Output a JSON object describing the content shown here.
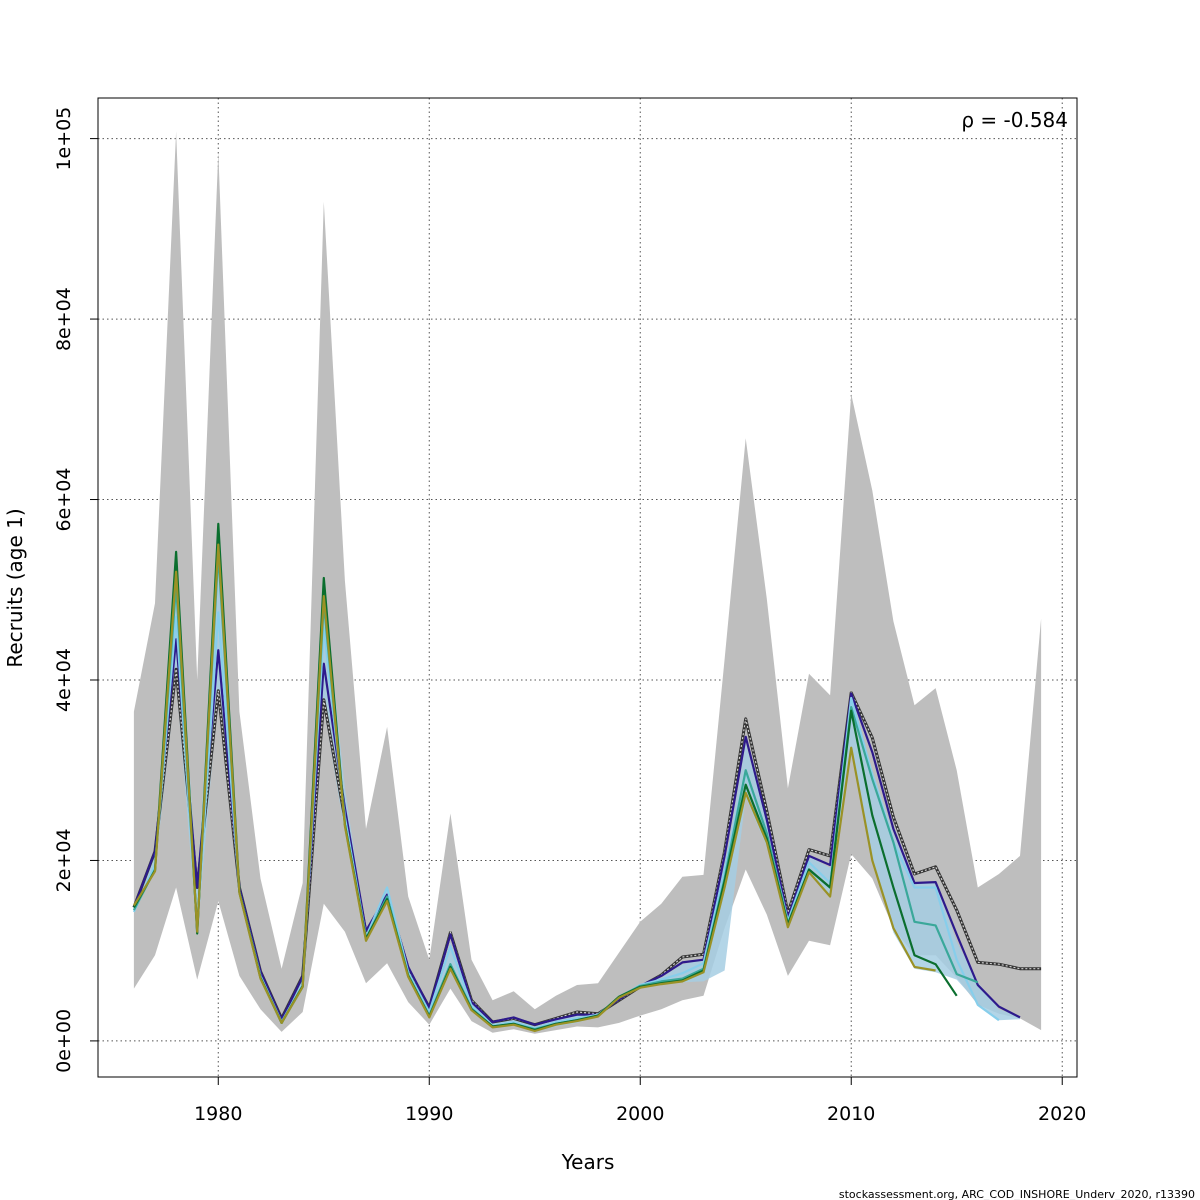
{
  "chart_data": {
    "type": "line",
    "xlabel": "Years",
    "ylabel": "Recruits (age 1)",
    "xlim": [
      1974.3,
      2020.7
    ],
    "ylim": [
      -4000,
      104500
    ],
    "x_ticks": [
      1980,
      1990,
      2000,
      2010,
      2020
    ],
    "x_tick_labels": [
      "1980",
      "1990",
      "2000",
      "2010",
      "2020"
    ],
    "y_ticks": [
      0,
      20000,
      40000,
      60000,
      80000,
      100000
    ],
    "y_tick_labels": [
      "0e+00",
      "2e+04",
      "4e+04",
      "6e+04",
      "8e+04",
      "1e+05"
    ],
    "grid": true,
    "annotation": "ρ = -0.584",
    "credit": "stockassessment.org, ARC_COD_INSHORE_Underv_2020, r13390",
    "band_outer": {
      "color": "#bebebe",
      "x": [
        1976,
        1977,
        1978,
        1979,
        1980,
        1981,
        1982,
        1983,
        1984,
        1985,
        1986,
        1987,
        1988,
        1989,
        1990,
        1991,
        1992,
        1993,
        1994,
        1995,
        1996,
        1997,
        1998,
        1999,
        2000,
        2001,
        2002,
        2003,
        2004,
        2005,
        2006,
        2007,
        2008,
        2009,
        2010,
        2011,
        2012,
        2013,
        2014,
        2015,
        2016,
        2017,
        2018,
        2019
      ],
      "upper": [
        36500,
        48500,
        100800,
        40000,
        98500,
        36500,
        18000,
        8000,
        17500,
        93000,
        51000,
        23500,
        34800,
        16000,
        9000,
        25200,
        9000,
        4500,
        5500,
        3500,
        5000,
        6200,
        6400,
        9800,
        13200,
        15200,
        18200,
        18400,
        42300,
        66800,
        49000,
        28000,
        40700,
        38300,
        71700,
        61000,
        46500,
        37200,
        39100,
        30000,
        17000,
        18500,
        20500,
        46800
      ],
      "lower": [
        5800,
        9500,
        17000,
        6800,
        15500,
        7200,
        3500,
        1000,
        3200,
        15200,
        12100,
        6400,
        8600,
        4300,
        1800,
        5800,
        2200,
        900,
        1300,
        800,
        1200,
        1600,
        1500,
        2000,
        2800,
        3500,
        4500,
        5000,
        12500,
        19000,
        14000,
        7200,
        11100,
        10600,
        20700,
        18000,
        12500,
        9500,
        9500,
        7000,
        4000,
        3000,
        2500,
        1200
      ]
    },
    "band_inner": {
      "color": "#a6cee3",
      "x": [
        1976,
        1977,
        1978,
        1979,
        1980,
        1981,
        1982,
        1983,
        1984,
        1985,
        1986,
        1987,
        1988,
        1989,
        1990,
        1991,
        1992,
        1993,
        1994,
        1995,
        1996,
        1997,
        1998,
        1999,
        2000,
        2001,
        2002,
        2003,
        2004,
        2005,
        2006,
        2007,
        2008,
        2009,
        2010,
        2011,
        2012,
        2013,
        2014,
        2015,
        2016,
        2017,
        2018
      ],
      "upper": [
        15000,
        21000,
        53000,
        17000,
        56500,
        16800,
        7800,
        2300,
        7300,
        50200,
        28000,
        12200,
        16700,
        8000,
        3600,
        11000,
        4100,
        1950,
        2500,
        1600,
        2300,
        2900,
        2900,
        4700,
        6300,
        7000,
        8500,
        9000,
        19000,
        33000,
        24300,
        13500,
        20400,
        19200,
        38000,
        30000,
        23000,
        17500,
        17500,
        11000,
        6500,
        3500,
        2700
      ],
      "lower": [
        14300,
        18800,
        40000,
        11800,
        38500,
        15900,
        6800,
        1800,
        5800,
        37000,
        23000,
        11000,
        15300,
        7000,
        2500,
        8000,
        3500,
        1400,
        1800,
        1000,
        1600,
        2000,
        2700,
        4400,
        6000,
        6300,
        6500,
        6600,
        7800,
        27000,
        21500,
        12800,
        18700,
        16000,
        32000,
        20000,
        12000,
        8000,
        7600,
        6800,
        4200,
        2300,
        2400
      ]
    },
    "series": [
      {
        "color": "#333333",
        "style": "dotted",
        "x": [
          1976,
          1977,
          1978,
          1979,
          1980,
          1981,
          1982,
          1983,
          1984,
          1985,
          1986,
          1987,
          1988,
          1989,
          1990,
          1991,
          1992,
          1993,
          1994,
          1995,
          1996,
          1997,
          1998,
          1999,
          2000,
          2001,
          2002,
          2003,
          2004,
          2005,
          2006,
          2007,
          2008,
          2009,
          2010,
          2011,
          2012,
          2013,
          2014,
          2015,
          2016,
          2017,
          2018,
          2019
        ],
        "values": [
          14800,
          21000,
          41200,
          17000,
          38800,
          17000,
          7700,
          2500,
          7200,
          37800,
          24600,
          12000,
          16000,
          8000,
          3700,
          12000,
          4500,
          2100,
          2500,
          1800,
          2500,
          3200,
          3000,
          4500,
          6000,
          7300,
          9300,
          9600,
          21000,
          35700,
          25500,
          14200,
          21200,
          20500,
          38600,
          33600,
          24800,
          18500,
          19300,
          14500,
          8700,
          8500,
          8000,
          8000
        ]
      },
      {
        "color": "#2d1a8c",
        "x": [
          1976,
          1977,
          1978,
          1979,
          1980,
          1981,
          1982,
          1983,
          1984,
          1985,
          1986,
          1987,
          1988,
          1989,
          1990,
          1991,
          1992,
          1993,
          1994,
          1995,
          1996,
          1997,
          1998,
          1999,
          2000,
          2001,
          2002,
          2003,
          2004,
          2005,
          2006,
          2007,
          2008,
          2009,
          2010,
          2011,
          2012,
          2013,
          2014,
          2015,
          2016,
          2017,
          2018
        ],
        "values": [
          14800,
          21000,
          44500,
          17000,
          43300,
          17000,
          7700,
          2400,
          7100,
          41800,
          25800,
          12200,
          16200,
          8200,
          3700,
          11800,
          4300,
          2100,
          2600,
          1800,
          2400,
          2900,
          2900,
          4600,
          6100,
          7200,
          8700,
          9000,
          20500,
          33700,
          24500,
          13700,
          20500,
          19500,
          38500,
          32000,
          23500,
          17500,
          17600,
          11800,
          6200,
          3800,
          2600
        ]
      },
      {
        "color": "#87ceeb",
        "x": [
          1976,
          1977,
          1978,
          1979,
          1980,
          1981,
          1982,
          1983,
          1984,
          1985,
          1986,
          1987,
          1988,
          1989,
          1990,
          1991,
          1992,
          1993,
          1994,
          1995,
          1996,
          1997,
          1998,
          1999,
          2000,
          2001,
          2002,
          2003,
          2004,
          2005,
          2006,
          2007,
          2008,
          2009,
          2010,
          2011,
          2012,
          2013,
          2014,
          2015,
          2016,
          2017
        ],
        "values": [
          14300,
          19500,
          47000,
          12500,
          47500,
          16500,
          7200,
          2100,
          6300,
          45800,
          24800,
          11500,
          17000,
          7600,
          3200,
          10500,
          3900,
          1700,
          2100,
          1400,
          2100,
          2500,
          2900,
          4800,
          6200,
          6800,
          7500,
          8600,
          19000,
          29800,
          23000,
          13300,
          19800,
          17500,
          38000,
          29500,
          22000,
          17000,
          17000,
          9000,
          4000,
          2300
        ]
      },
      {
        "color": "#3aa89a",
        "x": [
          1976,
          1977,
          1978,
          1979,
          1980,
          1981,
          1982,
          1983,
          1984,
          1985,
          1986,
          1987,
          1988,
          1989,
          1990,
          1991,
          1992,
          1993,
          1994,
          1995,
          1996,
          1997,
          1998,
          1999,
          2000,
          2001,
          2002,
          2003,
          2004,
          2005,
          2006,
          2007,
          2008,
          2009,
          2010,
          2011,
          2012,
          2013,
          2014,
          2015,
          2016
        ],
        "values": [
          14500,
          19000,
          50500,
          12200,
          54000,
          16500,
          7000,
          2000,
          6000,
          48500,
          24000,
          11300,
          16000,
          7300,
          2800,
          8500,
          3600,
          1600,
          1900,
          1300,
          1900,
          2300,
          2800,
          4900,
          6100,
          6600,
          6900,
          8000,
          18000,
          30000,
          23000,
          13000,
          19000,
          17000,
          37000,
          29000,
          22000,
          13200,
          12800,
          7400,
          6500
        ]
      },
      {
        "color": "#0b6e2e",
        "x": [
          1976,
          1977,
          1978,
          1979,
          1980,
          1981,
          1982,
          1983,
          1984,
          1985,
          1986,
          1987,
          1988,
          1989,
          1990,
          1991,
          1992,
          1993,
          1994,
          1995,
          1996,
          1997,
          1998,
          1999,
          2000,
          2001,
          2002,
          2003,
          2004,
          2005,
          2006,
          2007,
          2008,
          2009,
          2010,
          2011,
          2012,
          2013,
          2014,
          2015
        ],
        "values": [
          14800,
          18900,
          54200,
          11900,
          57300,
          16500,
          7000,
          2000,
          6100,
          51300,
          24000,
          11300,
          15700,
          7200,
          2700,
          8200,
          3500,
          1600,
          1900,
          1200,
          1900,
          2300,
          2800,
          4900,
          6000,
          6400,
          6700,
          7800,
          17700,
          28400,
          22400,
          12900,
          19000,
          17000,
          36600,
          25000,
          17000,
          9500,
          8500,
          5000
        ]
      },
      {
        "color": "#9a9226",
        "x": [
          1976,
          1977,
          1978,
          1979,
          1980,
          1981,
          1982,
          1983,
          1984,
          1985,
          1986,
          1987,
          1988,
          1989,
          1990,
          1991,
          1992,
          1993,
          1994,
          1995,
          1996,
          1997,
          1998,
          1999,
          2000,
          2001,
          2002,
          2003,
          2004,
          2005,
          2006,
          2007,
          2008,
          2009,
          2010,
          2011,
          2012,
          2013,
          2014
        ],
        "values": [
          15000,
          18800,
          52000,
          12100,
          55000,
          16400,
          6900,
          2000,
          6000,
          49300,
          23800,
          11100,
          15500,
          7100,
          2600,
          8000,
          3400,
          1500,
          1800,
          1100,
          1800,
          2200,
          2700,
          4800,
          5900,
          6300,
          6600,
          7600,
          17000,
          27500,
          22000,
          12600,
          18700,
          16000,
          32500,
          20000,
          12500,
          8200,
          7800
        ]
      }
    ]
  }
}
